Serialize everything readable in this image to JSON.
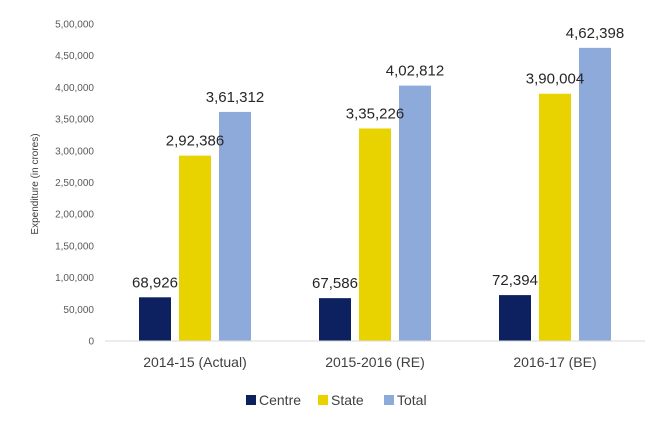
{
  "chart_data": {
    "type": "bar",
    "title": "",
    "xlabel": "",
    "ylabel": "Expenditure  (in crores)",
    "ylim": [
      0,
      500000
    ],
    "yticks": [
      0,
      50000,
      100000,
      150000,
      200000,
      250000,
      300000,
      350000,
      400000,
      450000,
      500000
    ],
    "ytick_labels": [
      "0",
      "50,000",
      "1,00,000",
      "1,50,000",
      "2,00,000",
      "2,50,000",
      "3,00,000",
      "3,50,000",
      "4,00,000",
      "4,50,000",
      "5,00,000"
    ],
    "categories": [
      "2014-15 (Actual)",
      "2015-2016 (RE)",
      "2016-17 (BE)"
    ],
    "series": [
      {
        "name": "Centre",
        "color": "#0d2160",
        "values": [
          68926,
          67586,
          72394
        ],
        "labels": [
          "68,926",
          "67,586",
          "72,394"
        ]
      },
      {
        "name": "State",
        "color": "#e8d200",
        "values": [
          292386,
          335226,
          390004
        ],
        "labels": [
          "2,92,386",
          "3,35,226",
          "3,90,004"
        ]
      },
      {
        "name": "Total",
        "color": "#8eaadb",
        "values": [
          361312,
          402812,
          462398
        ],
        "labels": [
          "3,61,312",
          "4,02,812",
          "4,62,398"
        ]
      }
    ],
    "grid": false,
    "legend_position": "bottom"
  }
}
